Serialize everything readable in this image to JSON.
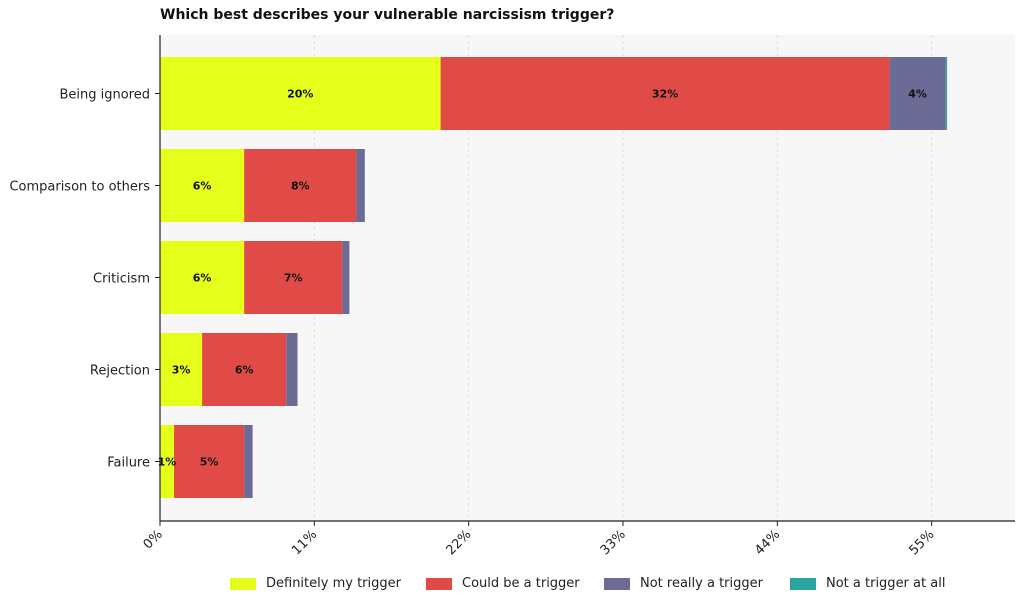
{
  "chart_data": {
    "type": "bar",
    "orientation": "horizontal",
    "stacked": true,
    "title": "Which best describes your vulnerable narcissism trigger?",
    "xlabel": "",
    "ylabel": "",
    "categories": [
      "Being ignored",
      "Comparison to others",
      "Criticism",
      "Rejection",
      "Failure"
    ],
    "series": [
      {
        "name": "Definitely my trigger",
        "color": "#e6ff1a",
        "values": [
          20,
          6,
          6,
          3,
          1
        ],
        "labels": [
          "20%",
          "6%",
          "6%",
          "3%",
          "1%"
        ]
      },
      {
        "name": "Could be a trigger",
        "color": "#e04b48",
        "values": [
          32,
          8,
          7,
          6,
          5
        ],
        "labels": [
          "32%",
          "8%",
          "7%",
          "6%",
          "5%"
        ]
      },
      {
        "name": "Not really a trigger",
        "color": "#6b6b96",
        "values": [
          4,
          0.6,
          0.5,
          0.8,
          0.6
        ],
        "labels": [
          "4%",
          "",
          "",
          "",
          ""
        ]
      },
      {
        "name": "Not a trigger at all",
        "color": "#2ba3a0",
        "values": [
          0.1,
          0,
          0,
          0,
          0
        ],
        "labels": [
          "",
          "",
          "",
          "",
          ""
        ]
      }
    ],
    "xlim": [
      0,
      61
    ],
    "xticks": [
      0,
      11,
      22,
      33,
      44,
      55
    ],
    "xtick_labels": [
      "0%",
      "11%",
      "22%",
      "33%",
      "44%",
      "55%"
    ],
    "grid": "vertical dashed",
    "legend_position": "bottom"
  }
}
